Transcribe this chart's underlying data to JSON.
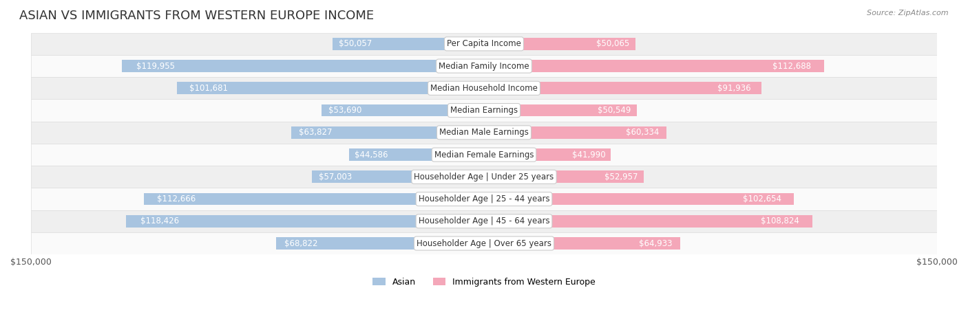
{
  "title": "ASIAN VS IMMIGRANTS FROM WESTERN EUROPE INCOME",
  "source": "Source: ZipAtlas.com",
  "categories": [
    "Per Capita Income",
    "Median Family Income",
    "Median Household Income",
    "Median Earnings",
    "Median Male Earnings",
    "Median Female Earnings",
    "Householder Age | Under 25 years",
    "Householder Age | 25 - 44 years",
    "Householder Age | 45 - 64 years",
    "Householder Age | Over 65 years"
  ],
  "asian_values": [
    50057,
    119955,
    101681,
    53690,
    63827,
    44586,
    57003,
    112666,
    118426,
    68822
  ],
  "western_values": [
    50065,
    112688,
    91936,
    50549,
    60334,
    41990,
    52957,
    102654,
    108824,
    64933
  ],
  "asian_labels": [
    "$50,057",
    "$119,955",
    "$101,681",
    "$53,690",
    "$63,827",
    "$44,586",
    "$57,003",
    "$112,666",
    "$118,426",
    "$68,822"
  ],
  "western_labels": [
    "$50,065",
    "$112,688",
    "$91,936",
    "$50,549",
    "$60,334",
    "$41,990",
    "$52,957",
    "$102,654",
    "$108,824",
    "$64,933"
  ],
  "asian_color": "#a8c4e0",
  "asian_color_dark": "#7aafd4",
  "western_color": "#f4a7b9",
  "western_color_dark": "#e87fa0",
  "max_value": 150000,
  "bar_height": 0.55,
  "bg_color": "#f5f5f5",
  "row_bg_even": "#efefef",
  "row_bg_odd": "#fafafa",
  "title_fontsize": 13,
  "label_fontsize": 8.5,
  "category_fontsize": 8.5,
  "legend_labels": [
    "Asian",
    "Immigrants from Western Europe"
  ]
}
